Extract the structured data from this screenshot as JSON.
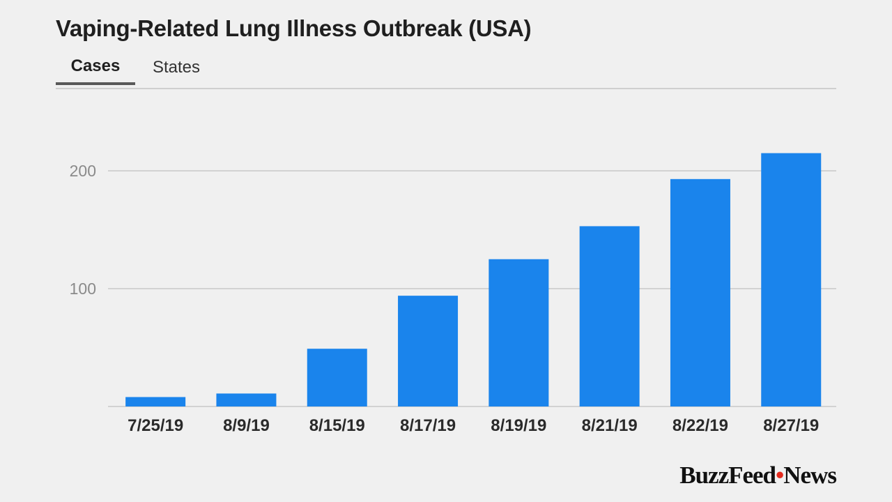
{
  "title": "Vaping-Related Lung Illness Outbreak (USA)",
  "tabs": [
    {
      "label": "Cases",
      "active": true
    },
    {
      "label": "States",
      "active": false
    }
  ],
  "brand": {
    "name_part1": "BuzzFeed",
    "dot": "•",
    "name_part2": "News",
    "dot_color": "#e32a1d"
  },
  "colors": {
    "bar": "#1a84ec",
    "gridline": "#c8c8c8",
    "tick_label": "#8a8a8a",
    "category_label": "#2a2a2a",
    "background": "#f0f0f0"
  },
  "chart_data": {
    "type": "bar",
    "categories": [
      "7/25/19",
      "8/9/19",
      "8/15/19",
      "8/17/19",
      "8/19/19",
      "8/21/19",
      "8/22/19",
      "8/27/19"
    ],
    "values": [
      8,
      11,
      49,
      94,
      125,
      153,
      193,
      215
    ],
    "yticks": [
      100,
      200
    ],
    "ylim": [
      0,
      250
    ],
    "grid": true,
    "legend": "none"
  }
}
